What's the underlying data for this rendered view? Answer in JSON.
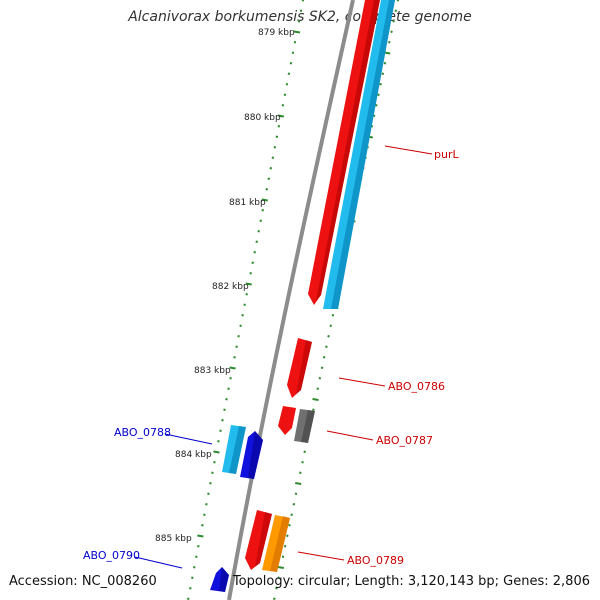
{
  "title": "Alcanivorax borkumensis SK2, complete genome",
  "footer": {
    "accession": "Accession: NC_008260",
    "stats": "Topology: circular; Length: 3,120,143 bp; Genes: 2,806"
  },
  "kbp_labels": [
    "879 kbp",
    "880 kbp",
    "881 kbp",
    "882 kbp",
    "883 kbp",
    "884 kbp",
    "885 kbp"
  ],
  "gene_labels": [
    {
      "text": "purL",
      "color": "#cc0000"
    },
    {
      "text": "ABO_0786",
      "color": "#cc0000"
    },
    {
      "text": "ABO_0787",
      "color": "#cc0000"
    },
    {
      "text": "ABO_0788",
      "color": "#0000cc"
    },
    {
      "text": "ABO_0789",
      "color": "#cc0000"
    },
    {
      "text": "ABO_0790",
      "color": "#0000cc"
    }
  ],
  "colors": {
    "backbone": "#8c8c8c",
    "tick": "#2e8b2e",
    "red": "#ee1111",
    "light_blue": "#22bbee",
    "dark_blue": "#1111dd",
    "grey": "#707070",
    "orange": "#ff9900"
  }
}
